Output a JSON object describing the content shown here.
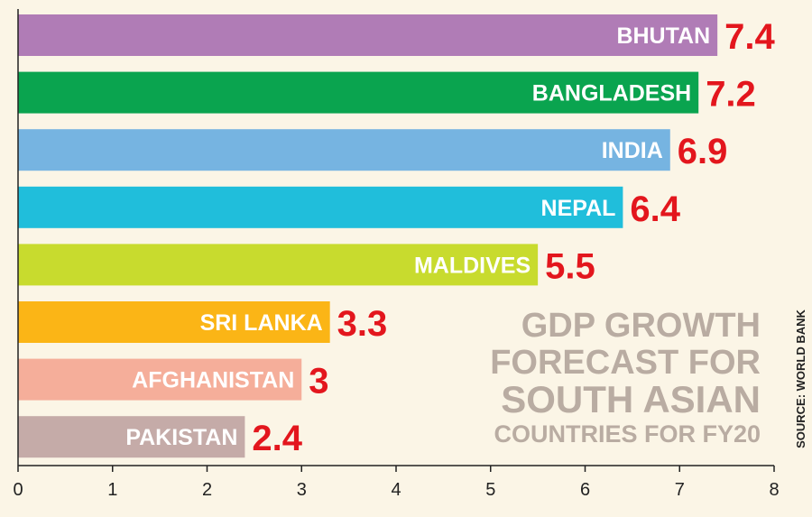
{
  "chart_data": {
    "type": "bar",
    "orientation": "horizontal",
    "categories": [
      "BHUTAN",
      "BANGLADESH",
      "INDIA",
      "NEPAL",
      "MALDIVES",
      "SRI LANKA",
      "AFGHANISTAN",
      "PAKISTAN"
    ],
    "values": [
      7.4,
      7.2,
      6.9,
      6.4,
      5.5,
      3.3,
      3,
      2.4
    ],
    "value_labels": [
      "7.4",
      "7.2",
      "6.9",
      "6.4",
      "5.5",
      "3.3",
      "3",
      "2.4"
    ],
    "colors": [
      "#b07cb6",
      "#0aa44f",
      "#76b4e1",
      "#20bedb",
      "#c8db2e",
      "#fbb516",
      "#f5ae9a",
      "#c5aba8"
    ],
    "xlim": [
      0,
      8
    ],
    "xticks": [
      "0",
      "1",
      "2",
      "3",
      "4",
      "5",
      "6",
      "7",
      "8"
    ],
    "title_lines": [
      "GDP GROWTH",
      "FORECAST FOR",
      "SOUTH ASIAN",
      "COUNTRIES FOR FY20"
    ],
    "source": "SOURCE: WORLD BANK",
    "grid": false,
    "value_color": "#e3161d",
    "title_color": "#b9aca2"
  }
}
